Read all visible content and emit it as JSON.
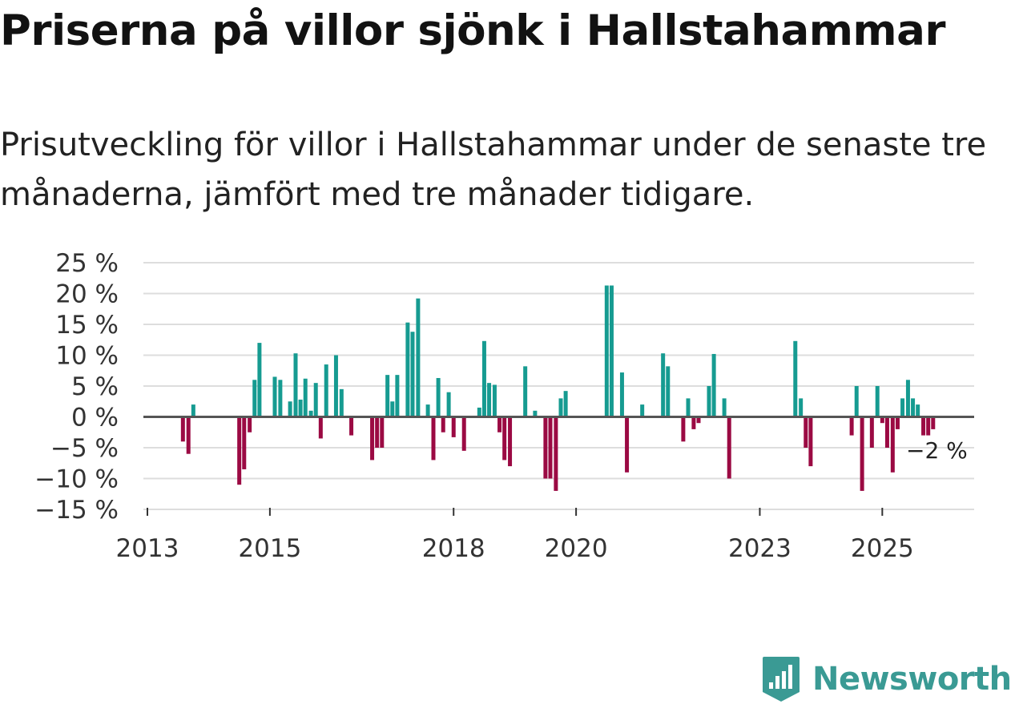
{
  "title": "Priserna på villor sjönk i Hallstahammar",
  "subtitle": "Prisutveckling för villor i Hallstahammar under de senaste tre månaderna, jämfört med tre månader tidigare.",
  "brand": {
    "name": "Newsworthy",
    "icon": "newsworthy-logo-icon",
    "color": "#3a9a94"
  },
  "colors": {
    "positive": "#169b91",
    "negative": "#9b0a43",
    "grid": "#dddddd",
    "zero_line": "#555555"
  },
  "chart_data": {
    "type": "bar",
    "title": "Priserna på villor sjönk i Hallstahammar",
    "ylabel": "",
    "xlabel": "",
    "ylim": [
      -15,
      25
    ],
    "xlim": [
      2013.0,
      2026.5
    ],
    "yticks": [
      25,
      20,
      15,
      10,
      5,
      0,
      -5,
      -10,
      -15
    ],
    "ytick_labels": [
      "25 %",
      "20 %",
      "15 %",
      "10 %",
      "5 %",
      "0 %",
      "−5 %",
      "−10 %",
      "−15 %"
    ],
    "xticks": [
      2013,
      2015,
      2018,
      2020,
      2023,
      2025
    ],
    "xtick_labels": [
      "2013",
      "2015",
      "2018",
      "2020",
      "2023",
      "2025"
    ],
    "annotation": {
      "text": "−2 %",
      "x": 2025.75,
      "y": -2
    },
    "bars": [
      {
        "x": 2013.58,
        "y": -4
      },
      {
        "x": 2013.67,
        "y": -6
      },
      {
        "x": 2013.75,
        "y": 2
      },
      {
        "x": 2014.5,
        "y": -11
      },
      {
        "x": 2014.58,
        "y": -8.5
      },
      {
        "x": 2014.67,
        "y": -2.5
      },
      {
        "x": 2014.75,
        "y": 6
      },
      {
        "x": 2014.83,
        "y": 12
      },
      {
        "x": 2015.08,
        "y": 6.5
      },
      {
        "x": 2015.17,
        "y": 6
      },
      {
        "x": 2015.33,
        "y": 2.5
      },
      {
        "x": 2015.42,
        "y": 10.3
      },
      {
        "x": 2015.5,
        "y": 2.8
      },
      {
        "x": 2015.58,
        "y": 6.2
      },
      {
        "x": 2015.67,
        "y": 1
      },
      {
        "x": 2015.75,
        "y": 5.5
      },
      {
        "x": 2015.83,
        "y": -3.5
      },
      {
        "x": 2015.92,
        "y": 8.5
      },
      {
        "x": 2016.08,
        "y": 10
      },
      {
        "x": 2016.17,
        "y": 4.5
      },
      {
        "x": 2016.33,
        "y": -3
      },
      {
        "x": 2016.67,
        "y": -7
      },
      {
        "x": 2016.75,
        "y": -5
      },
      {
        "x": 2016.83,
        "y": -5
      },
      {
        "x": 2016.92,
        "y": 6.8
      },
      {
        "x": 2017.0,
        "y": 2.5
      },
      {
        "x": 2017.08,
        "y": 6.8
      },
      {
        "x": 2017.25,
        "y": 15.3
      },
      {
        "x": 2017.33,
        "y": 13.8
      },
      {
        "x": 2017.42,
        "y": 19.2
      },
      {
        "x": 2017.58,
        "y": 2
      },
      {
        "x": 2017.67,
        "y": -7
      },
      {
        "x": 2017.75,
        "y": 6.3
      },
      {
        "x": 2017.83,
        "y": -2.5
      },
      {
        "x": 2017.92,
        "y": 4
      },
      {
        "x": 2018.0,
        "y": -3.3
      },
      {
        "x": 2018.17,
        "y": -5.5
      },
      {
        "x": 2018.42,
        "y": 1.5
      },
      {
        "x": 2018.5,
        "y": 12.3
      },
      {
        "x": 2018.58,
        "y": 5.5
      },
      {
        "x": 2018.67,
        "y": 5.2
      },
      {
        "x": 2018.75,
        "y": -2.5
      },
      {
        "x": 2018.83,
        "y": -7
      },
      {
        "x": 2018.92,
        "y": -8
      },
      {
        "x": 2019.17,
        "y": 8.2
      },
      {
        "x": 2019.33,
        "y": 1
      },
      {
        "x": 2019.5,
        "y": -10
      },
      {
        "x": 2019.58,
        "y": -10
      },
      {
        "x": 2019.67,
        "y": -12
      },
      {
        "x": 2019.75,
        "y": 3
      },
      {
        "x": 2019.83,
        "y": 4.2
      },
      {
        "x": 2020.5,
        "y": 21.3
      },
      {
        "x": 2020.58,
        "y": 21.3
      },
      {
        "x": 2020.75,
        "y": 7.2
      },
      {
        "x": 2020.83,
        "y": -9
      },
      {
        "x": 2021.08,
        "y": 2
      },
      {
        "x": 2021.42,
        "y": 10.3
      },
      {
        "x": 2021.5,
        "y": 8.2
      },
      {
        "x": 2021.75,
        "y": -4
      },
      {
        "x": 2021.83,
        "y": 3
      },
      {
        "x": 2021.92,
        "y": -2
      },
      {
        "x": 2022.0,
        "y": -1
      },
      {
        "x": 2022.17,
        "y": 5
      },
      {
        "x": 2022.25,
        "y": 10.2
      },
      {
        "x": 2022.42,
        "y": 3
      },
      {
        "x": 2022.5,
        "y": -10
      },
      {
        "x": 2023.58,
        "y": 12.3
      },
      {
        "x": 2023.67,
        "y": 3
      },
      {
        "x": 2023.75,
        "y": -5
      },
      {
        "x": 2023.83,
        "y": -8
      },
      {
        "x": 2024.5,
        "y": -3
      },
      {
        "x": 2024.58,
        "y": 5
      },
      {
        "x": 2024.67,
        "y": -12
      },
      {
        "x": 2024.83,
        "y": -5
      },
      {
        "x": 2024.92,
        "y": 5
      },
      {
        "x": 2025.0,
        "y": -1
      },
      {
        "x": 2025.08,
        "y": -5
      },
      {
        "x": 2025.17,
        "y": -9
      },
      {
        "x": 2025.25,
        "y": -2
      },
      {
        "x": 2025.33,
        "y": 3
      },
      {
        "x": 2025.42,
        "y": 6
      },
      {
        "x": 2025.5,
        "y": 3
      },
      {
        "x": 2025.58,
        "y": 2
      },
      {
        "x": 2025.67,
        "y": -3
      },
      {
        "x": 2025.75,
        "y": -3
      },
      {
        "x": 2025.83,
        "y": -2
      }
    ]
  }
}
